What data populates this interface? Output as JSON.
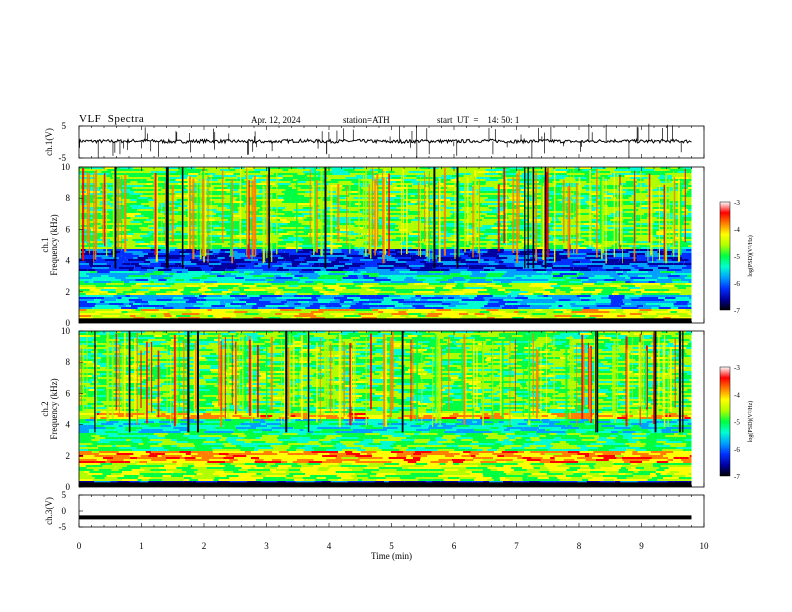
{
  "header": {
    "title": "VLF  Spectra",
    "date": "Apr. 12, 2024",
    "station": "station=ATH",
    "start": "start  UT  =    14: 50: 1"
  },
  "colors": {
    "spectrogram_scale": [
      "#000000",
      "#0000a0",
      "#0030ff",
      "#00a0ff",
      "#00ffd0",
      "#00ff40",
      "#b0ff00",
      "#ffff00",
      "#ff8000",
      "#ff0000",
      "#ffffff"
    ],
    "trace": "#000000"
  },
  "chart_data": [
    {
      "type": "line",
      "panel": "channel-1-voltage",
      "ylabel": "ch.1(V)",
      "ylim": [
        -5,
        5
      ],
      "y_ticks": [
        "5",
        "-5"
      ],
      "x": [
        0,
        0.5,
        1,
        1.5,
        2,
        2.5,
        3,
        3.5,
        4,
        4.5,
        5,
        5.5,
        6,
        6.5,
        7,
        7.5,
        8,
        8.5,
        9,
        9.5,
        9.8
      ],
      "values": [
        0.3,
        0.2,
        0.4,
        0.1,
        0.3,
        0.2,
        0.1,
        0.4,
        0.2,
        0.3,
        0.1,
        0.3,
        0.2,
        0.4,
        0.2,
        0.3,
        0.1,
        0.4,
        0.2,
        0.3,
        0.2
      ]
    },
    {
      "type": "heatmap",
      "panel": "channel-1-spectrogram",
      "label_channel": "ch.1",
      "ylabel": "Frequency  (kHz)",
      "ylim": [
        0,
        10
      ],
      "y_ticks": [
        "0",
        "2",
        "4",
        "6",
        "8",
        "10"
      ],
      "xlim": [
        0,
        10
      ],
      "data_extent_min": 9.8,
      "colorbar": {
        "label": "log(PSD)(V²/Hz)",
        "range": [
          -7,
          -3
        ],
        "ticks": [
          "-3",
          "-4",
          "-5",
          "-6",
          "-7"
        ]
      },
      "bands_khz": [
        {
          "from": 0.0,
          "to": 0.3,
          "level": -6.8
        },
        {
          "from": 0.3,
          "to": 1.0,
          "level": -4.5
        },
        {
          "from": 1.0,
          "to": 1.8,
          "level": -6.1
        },
        {
          "from": 1.8,
          "to": 2.6,
          "level": -4.9
        },
        {
          "from": 2.6,
          "to": 3.4,
          "level": -5.8
        },
        {
          "from": 3.4,
          "to": 4.8,
          "level": -6.6
        },
        {
          "from": 4.8,
          "to": 10.0,
          "level": -5.1
        }
      ]
    },
    {
      "type": "heatmap",
      "panel": "channel-2-spectrogram",
      "label_channel": "ch.2",
      "ylabel": "Frequency  (kHz)",
      "ylim": [
        0,
        10
      ],
      "y_ticks": [
        "0",
        "2",
        "4",
        "6",
        "8",
        "10"
      ],
      "xlim": [
        0,
        10
      ],
      "data_extent_min": 9.8,
      "colorbar": {
        "label": "log(PSD)(V²/Hz)",
        "range": [
          -7,
          -3
        ],
        "ticks": [
          "-3",
          "-4",
          "-5",
          "-6",
          "-7"
        ]
      },
      "bands_khz": [
        {
          "from": 0.0,
          "to": 0.4,
          "level": -6.6
        },
        {
          "from": 0.4,
          "to": 1.6,
          "level": -4.8
        },
        {
          "from": 1.6,
          "to": 2.4,
          "level": -4.0
        },
        {
          "from": 2.4,
          "to": 3.5,
          "level": -5.2
        },
        {
          "from": 3.5,
          "to": 4.4,
          "level": -5.7
        },
        {
          "from": 4.4,
          "to": 4.8,
          "level": -4.2
        },
        {
          "from": 4.8,
          "to": 10.0,
          "level": -5.1
        }
      ]
    },
    {
      "type": "line",
      "panel": "channel-3-voltage",
      "ylabel": "ch.3(V)",
      "ylim": [
        -5,
        5
      ],
      "y_ticks": [
        "5",
        "0",
        "-5"
      ],
      "x": [
        0,
        9.8
      ],
      "values": [
        -2,
        -2
      ]
    }
  ],
  "x_axis": {
    "label": "Time  (min)",
    "ticks": [
      "0",
      "1",
      "2",
      "3",
      "4",
      "5",
      "6",
      "7",
      "8",
      "9",
      "10"
    ]
  }
}
